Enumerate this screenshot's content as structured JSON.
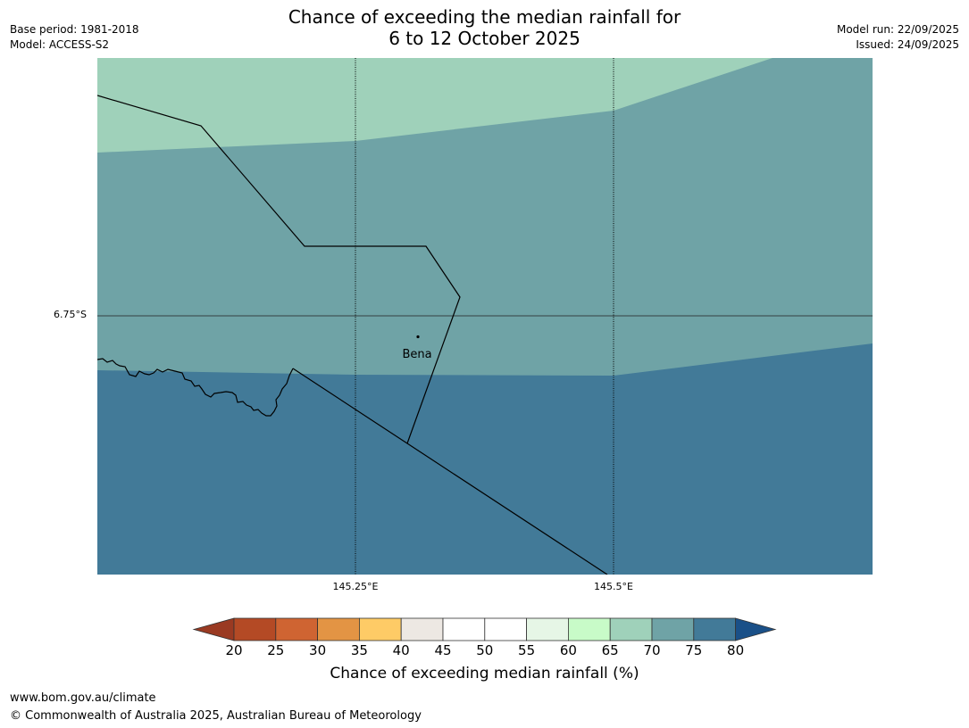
{
  "header": {
    "title_line1": "Chance of exceeding the median rainfall for",
    "title_line2": "6 to 12 October 2025",
    "base_period": "Base period: 1981-2018",
    "model": "Model: ACCESS-S2",
    "model_run": "Model run: 22/09/2025",
    "issued": "Issued: 24/09/2025"
  },
  "map": {
    "latitude_label": "6.75°S",
    "longitude_labels": [
      "145.25°E",
      "145.5°E"
    ],
    "place": {
      "name": "Bena"
    },
    "zone_colors": {
      "65-70": "#9fd1ba",
      "70-75": "#6fa3a6",
      "75-80": "#427a98"
    }
  },
  "colorbar": {
    "title": "Chance of exceeding median rainfall (%)",
    "ticks": [
      "20",
      "25",
      "30",
      "35",
      "40",
      "45",
      "50",
      "55",
      "60",
      "65",
      "70",
      "75",
      "80"
    ],
    "low_extend_color": "#9a3a22",
    "high_extend_color": "#1a5088",
    "bins": [
      {
        "range": "20-25",
        "color": "#b44a25"
      },
      {
        "range": "25-30",
        "color": "#cf6432"
      },
      {
        "range": "30-35",
        "color": "#e39444"
      },
      {
        "range": "35-40",
        "color": "#fecb66"
      },
      {
        "range": "40-45",
        "color": "#ede8e3"
      },
      {
        "range": "45-50",
        "color": "#ffffff"
      },
      {
        "range": "50-55",
        "color": "#ffffff"
      },
      {
        "range": "55-60",
        "color": "#e6f6e6"
      },
      {
        "range": "60-65",
        "color": "#c8fbc8"
      },
      {
        "range": "65-70",
        "color": "#9fd1ba"
      },
      {
        "range": "70-75",
        "color": "#6fa3a6"
      },
      {
        "range": "75-80",
        "color": "#427a98"
      }
    ]
  },
  "footer": {
    "website": "www.bom.gov.au/climate",
    "copyright": "© Commonwealth of Australia 2025, Australian Bureau of Meteorology"
  }
}
